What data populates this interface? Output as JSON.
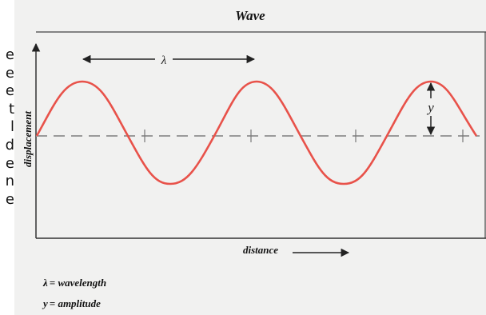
{
  "side_text": [
    "e",
    "e",
    "e",
    "t",
    "l",
    "d",
    "e",
    "n",
    "e"
  ],
  "diagram": {
    "title": "Wave",
    "y_axis_label": "displacement",
    "x_axis_label": "distance",
    "wavelength_symbol": "λ",
    "amplitude_symbol": "y",
    "legend": [
      {
        "symbol": "λ",
        "text": "= wavelength"
      },
      {
        "symbol": "y",
        "text": "= amplitude"
      }
    ],
    "colors": {
      "wave": "#e8524a",
      "axis": "#333333",
      "equilibrium": "#9a9a9a",
      "background": "#f1f1f0"
    }
  }
}
